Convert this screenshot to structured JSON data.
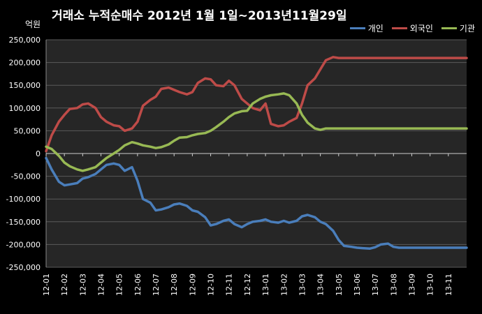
{
  "chart_data": {
    "type": "line",
    "title": "거래소 누적순매수 2012년 1월 1일~2013년11월29일",
    "unit_label": "억원",
    "ylim": [
      -250000,
      250000
    ],
    "y_ticks": [
      250000,
      200000,
      150000,
      100000,
      50000,
      0,
      -50000,
      -100000,
      -150000,
      -200000,
      -250000
    ],
    "y_tick_labels": [
      "250,000",
      "200,000",
      "150,000",
      "100,000",
      "50,000",
      "0",
      "-50,000",
      "-100,000",
      "-150,000",
      "-200,000",
      "-250,000"
    ],
    "categories": [
      "12-01",
      "12-02",
      "12-03",
      "12-04",
      "12-05",
      "12-06",
      "12-07",
      "12-08",
      "12-09",
      "12-10",
      "12-11",
      "12-12",
      "13-01",
      "13-02",
      "13-03",
      "13-04",
      "13-05",
      "13-06",
      "13-07",
      "13-08",
      "13-09",
      "13-10",
      "13-11"
    ],
    "x": [
      0,
      0.3,
      0.7,
      1,
      1.3,
      1.7,
      2,
      2.3,
      2.7,
      3,
      3.3,
      3.7,
      4,
      4.3,
      4.7,
      5,
      5.3,
      5.7,
      6,
      6.3,
      6.7,
      7,
      7.3,
      7.7,
      8,
      8.3,
      8.7,
      9,
      9.3,
      9.7,
      10,
      10.3,
      10.7,
      11,
      11.3,
      11.7,
      12,
      12.3,
      12.7,
      13,
      13.3,
      13.7,
      14,
      14.3,
      14.7,
      15,
      15.3,
      15.7,
      16,
      16.3,
      16.7,
      17,
      17.3,
      17.7,
      18,
      18.3,
      18.7,
      19,
      19.3,
      19.7,
      20,
      20.3,
      20.7,
      21,
      21.3,
      21.7,
      22,
      22.3,
      22.7,
      23
    ],
    "gridlines": true,
    "legend_position": "top-right",
    "series": [
      {
        "name": "개인",
        "color": "#4a7ebb",
        "values": [
          -10000,
          -35000,
          -62000,
          -70000,
          -68000,
          -65000,
          -55000,
          -52000,
          -45000,
          -35000,
          -25000,
          -22000,
          -25000,
          -38000,
          -30000,
          -60000,
          -100000,
          -108000,
          -125000,
          -123000,
          -118000,
          -112000,
          -110000,
          -115000,
          -125000,
          -128000,
          -140000,
          -158000,
          -155000,
          -148000,
          -145000,
          -155000,
          -162000,
          -155000,
          -150000,
          -148000,
          -145000,
          -150000,
          -152000,
          -148000,
          -152000,
          -148000,
          -138000,
          -135000,
          -140000,
          -150000,
          -155000,
          -170000,
          -190000,
          -203000,
          -205000,
          -207000,
          -208000,
          -209000,
          -206000,
          -200000,
          -198000,
          -205000,
          -207000,
          -207000,
          -207000,
          -207000,
          -207000,
          -207000,
          -207000,
          -207000,
          -207000,
          -207000,
          -207000,
          -207000
        ]
      },
      {
        "name": "외국인",
        "color": "#be4b48",
        "values": [
          5000,
          40000,
          70000,
          85000,
          98000,
          100000,
          108000,
          110000,
          100000,
          80000,
          70000,
          62000,
          60000,
          50000,
          55000,
          70000,
          105000,
          118000,
          125000,
          142000,
          145000,
          140000,
          135000,
          130000,
          135000,
          155000,
          165000,
          163000,
          150000,
          148000,
          160000,
          150000,
          120000,
          110000,
          100000,
          95000,
          110000,
          65000,
          60000,
          62000,
          70000,
          78000,
          110000,
          150000,
          165000,
          185000,
          205000,
          212000,
          210000,
          210000,
          210000,
          210000,
          210000,
          210000,
          210000,
          210000,
          210000,
          210000,
          210000,
          210000,
          210000,
          210000,
          210000,
          210000,
          210000,
          210000,
          210000,
          210000,
          210000,
          210000
        ]
      },
      {
        "name": "기관",
        "color": "#98b954",
        "values": [
          15000,
          10000,
          -5000,
          -20000,
          -28000,
          -35000,
          -38000,
          -35000,
          -30000,
          -20000,
          -10000,
          0,
          8000,
          18000,
          25000,
          22000,
          18000,
          15000,
          12000,
          14000,
          20000,
          28000,
          35000,
          36000,
          40000,
          43000,
          45000,
          50000,
          58000,
          70000,
          80000,
          88000,
          93000,
          94000,
          110000,
          120000,
          125000,
          128000,
          130000,
          132000,
          128000,
          110000,
          85000,
          68000,
          55000,
          52000,
          55000,
          55000,
          55000,
          55000,
          55000,
          55000,
          55000,
          55000,
          55000,
          55000,
          55000,
          55000,
          55000,
          55000,
          55000,
          55000,
          55000,
          55000,
          55000,
          55000,
          55000,
          55000,
          55000,
          55000
        ]
      }
    ]
  }
}
